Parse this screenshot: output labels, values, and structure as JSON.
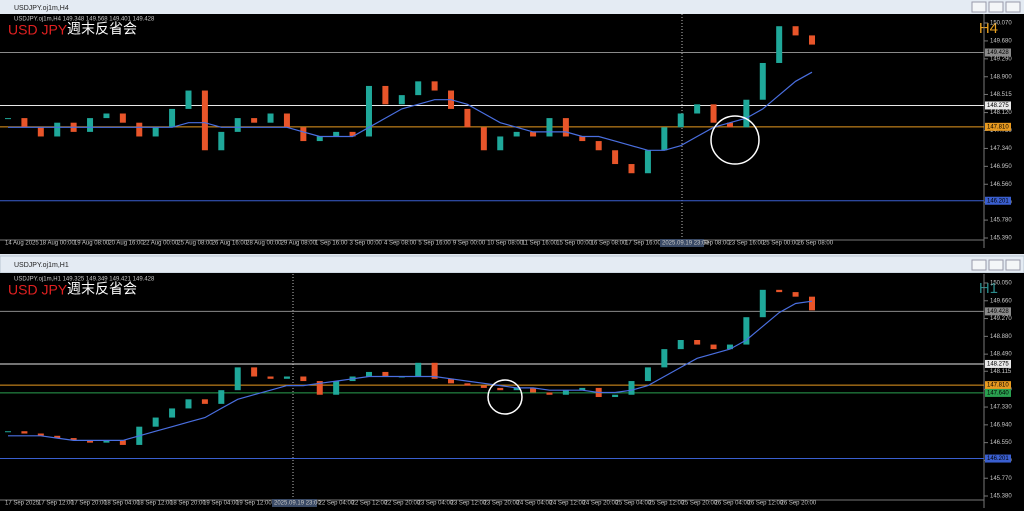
{
  "windows": [
    {
      "title": "USDJPY.oj1m,H4",
      "header": "USDJPY.oj1m,H4  149.348 149.568 149.401 149.428",
      "symbol": "USD JPY",
      "caption": "週末反省会",
      "timeframe": "H4",
      "timeframe_color": "#e8a020",
      "chart_data": {
        "type": "candlestick",
        "closes": [
          148.0,
          147.8,
          147.6,
          147.9,
          147.7,
          148.0,
          148.1,
          147.9,
          147.6,
          147.8,
          148.2,
          148.6,
          147.3,
          147.7,
          148.0,
          147.9,
          148.1,
          147.8,
          147.5,
          147.6,
          147.7,
          147.6,
          148.7,
          148.3,
          148.5,
          148.8,
          148.6,
          148.2,
          147.8,
          147.3,
          147.6,
          147.7,
          147.6,
          148.0,
          147.6,
          147.5,
          147.3,
          147.0,
          146.8,
          147.3,
          147.8,
          148.1,
          148.3,
          147.9,
          147.8,
          148.4,
          149.2,
          150.0,
          149.8,
          149.6
        ],
        "ma": [
          147.8,
          147.8,
          147.8,
          147.8,
          147.8,
          147.8,
          147.8,
          147.8,
          147.8,
          147.8,
          147.8,
          147.9,
          147.9,
          147.8,
          147.8,
          147.8,
          147.8,
          147.8,
          147.7,
          147.6,
          147.6,
          147.6,
          147.8,
          148.0,
          148.2,
          148.3,
          148.4,
          148.4,
          148.3,
          148.1,
          147.9,
          147.8,
          147.7,
          147.7,
          147.7,
          147.6,
          147.6,
          147.5,
          147.4,
          147.3,
          147.3,
          147.4,
          147.6,
          147.8,
          147.9,
          148.0,
          148.2,
          148.5,
          148.8,
          149.0
        ],
        "up_color": "#1fa89a",
        "down_color": "#e8552a",
        "ma_color": "#4a6fe0",
        "ylim": [
          145.216,
          150.266
        ],
        "yticks": [
          {
            "value": 150.07,
            "label": "150.070"
          },
          {
            "value": 149.68,
            "label": "149.680"
          },
          {
            "value": 149.29,
            "label": "149.290"
          },
          {
            "value": 148.9,
            "label": "148.900"
          },
          {
            "value": 148.515,
            "label": "148.515"
          },
          {
            "value": 148.12,
            "label": "148.120"
          },
          {
            "value": 147.73,
            "label": "147.730"
          },
          {
            "value": 147.34,
            "label": "147.340"
          },
          {
            "value": 146.95,
            "label": "146.950"
          },
          {
            "value": 146.56,
            "label": "146.560"
          },
          {
            "value": 146.17,
            "label": "146.170"
          },
          {
            "value": 145.78,
            "label": "145.780"
          },
          {
            "value": 145.39,
            "label": "145.390"
          }
        ],
        "levels": [
          {
            "value": 149.428,
            "label": "149.428",
            "color": "#8a8a8a"
          },
          {
            "value": 148.275,
            "label": "148.275",
            "color": "#e8e8e8"
          },
          {
            "value": 147.81,
            "label": "147.810",
            "color": "#e89a20"
          },
          {
            "value": 146.201,
            "label": "146.201",
            "color": "#3a5fd0"
          }
        ],
        "x": [
          "14 Aug 2025",
          "18 Aug 00:00",
          "19 Aug 08:00",
          "20 Aug 16:00",
          "22 Aug 00:00",
          "25 Aug 08:00",
          "26 Aug 16:00",
          "28 Aug 00:00",
          "29 Aug 08:00",
          "1 Sep 16:00",
          "3 Sep 00:00",
          "4 Sep 08:00",
          "5 Sep 16:00",
          "9 Sep 00:00",
          "10 Sep 08:00",
          "11 Sep 16:00",
          "15 Sep 00:00",
          "16 Sep 08:00",
          "17 Sep 16:00",
          "22 Sep 08:00",
          "23 Sep 16:00",
          "25 Sep 00:00",
          "26 Sep 08:00"
        ],
        "cursor_time": "2025.09.19 23:00"
      }
    },
    {
      "title": "USDJPY.oj1m,H1",
      "header": "USDJPY.oj1m,H1  149.325 149.349 149.421 149.428",
      "symbol": "USD JPY",
      "caption": "週末反省会",
      "timeframe": "H1",
      "timeframe_color": "#2a8a8a",
      "chart_data": {
        "type": "candlestick",
        "closes": [
          146.8,
          146.75,
          146.7,
          146.65,
          146.6,
          146.55,
          146.6,
          146.5,
          146.9,
          147.1,
          147.3,
          147.5,
          147.4,
          147.7,
          148.2,
          148.0,
          147.95,
          148.0,
          147.9,
          147.6,
          147.9,
          148.0,
          148.1,
          148.0,
          148.0,
          148.3,
          147.95,
          147.85,
          147.8,
          147.75,
          147.7,
          147.75,
          147.65,
          147.6,
          147.7,
          147.75,
          147.55,
          147.6,
          147.9,
          148.2,
          148.6,
          148.8,
          148.7,
          148.6,
          148.7,
          149.3,
          149.9,
          149.85,
          149.75,
          149.45
        ],
        "ma": [
          146.7,
          146.7,
          146.7,
          146.65,
          146.6,
          146.6,
          146.6,
          146.6,
          146.7,
          146.8,
          146.9,
          147.0,
          147.1,
          147.3,
          147.5,
          147.6,
          147.7,
          147.8,
          147.8,
          147.85,
          147.9,
          147.95,
          148.0,
          148.0,
          148.0,
          148.0,
          148.0,
          147.95,
          147.9,
          147.85,
          147.8,
          147.75,
          147.75,
          147.7,
          147.7,
          147.7,
          147.65,
          147.65,
          147.7,
          147.8,
          148.0,
          148.2,
          148.4,
          148.5,
          148.6,
          148.8,
          149.1,
          149.4,
          149.6,
          149.65
        ],
        "up_color": "#1fa89a",
        "down_color": "#e8552a",
        "ma_color": "#4a6fe0",
        "ylim": [
          145.161,
          150.247
        ],
        "yticks": [
          {
            "value": 150.05,
            "label": "150.050"
          },
          {
            "value": 149.66,
            "label": "149.660"
          },
          {
            "value": 149.27,
            "label": "149.270"
          },
          {
            "value": 148.88,
            "label": "148.880"
          },
          {
            "value": 148.49,
            "label": "148.490"
          },
          {
            "value": 148.115,
            "label": "148.115"
          },
          {
            "value": 147.72,
            "label": "147.720"
          },
          {
            "value": 147.33,
            "label": "147.330"
          },
          {
            "value": 146.94,
            "label": "146.940"
          },
          {
            "value": 146.55,
            "label": "146.550"
          },
          {
            "value": 146.16,
            "label": "146.160"
          },
          {
            "value": 145.77,
            "label": "145.770"
          },
          {
            "value": 145.38,
            "label": "145.380"
          }
        ],
        "levels": [
          {
            "value": 149.428,
            "label": "149.428",
            "color": "#8a8a8a"
          },
          {
            "value": 148.275,
            "label": "148.275",
            "color": "#e8e8e8"
          },
          {
            "value": 147.81,
            "label": "147.810",
            "color": "#e89a20"
          },
          {
            "value": 147.64,
            "label": "147.640",
            "color": "#2aa050"
          },
          {
            "value": 146.201,
            "label": "146.201",
            "color": "#3a5fd0"
          }
        ],
        "x": [
          "17 Sep 2025",
          "17 Sep 12:00",
          "17 Sep 20:00",
          "18 Sep 04:00",
          "18 Sep 12:00",
          "18 Sep 20:00",
          "19 Sep 04:00",
          "19 Sep 12:00",
          "22 Sep 04:00",
          "22 Sep 12:00",
          "22 Sep 20:00",
          "23 Sep 04:00",
          "23 Sep 12:00",
          "23 Sep 20:00",
          "24 Sep 04:00",
          "24 Sep 12:00",
          "24 Sep 20:00",
          "25 Sep 04:00",
          "25 Sep 12:00",
          "25 Sep 20:00",
          "26 Sep 04:00",
          "26 Sep 12:00",
          "26 Sep 20:00"
        ],
        "cursor_time": "2025.09.19 23:00"
      }
    }
  ]
}
